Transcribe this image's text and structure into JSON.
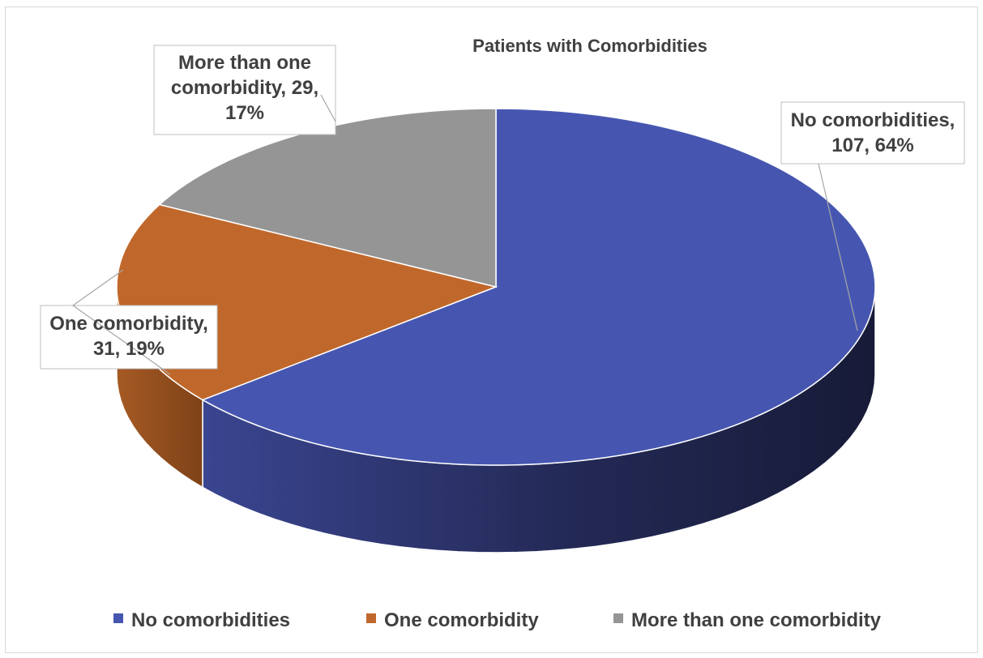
{
  "chart_data": {
    "type": "pie",
    "title": "Patients with Comorbidities",
    "categories": [
      "No comorbidities",
      "One comorbidity",
      "More than one comorbidity"
    ],
    "values": [
      107,
      31,
      29
    ],
    "percentages": [
      "64%",
      "19%",
      "17%"
    ],
    "data_labels": [
      [
        "No comorbidities,",
        "107, 64%"
      ],
      [
        "One comorbidity,",
        "31, 19%"
      ],
      [
        "More than one",
        "comorbidity, 29,",
        "17%"
      ]
    ],
    "colors": [
      "#4656B0",
      "#C0682B",
      "#959595"
    ],
    "side_colors": [
      "#252B5C",
      "#8A4A1C",
      "#6C6C6C"
    ],
    "legend_position": "bottom",
    "style": "3d-pie"
  }
}
